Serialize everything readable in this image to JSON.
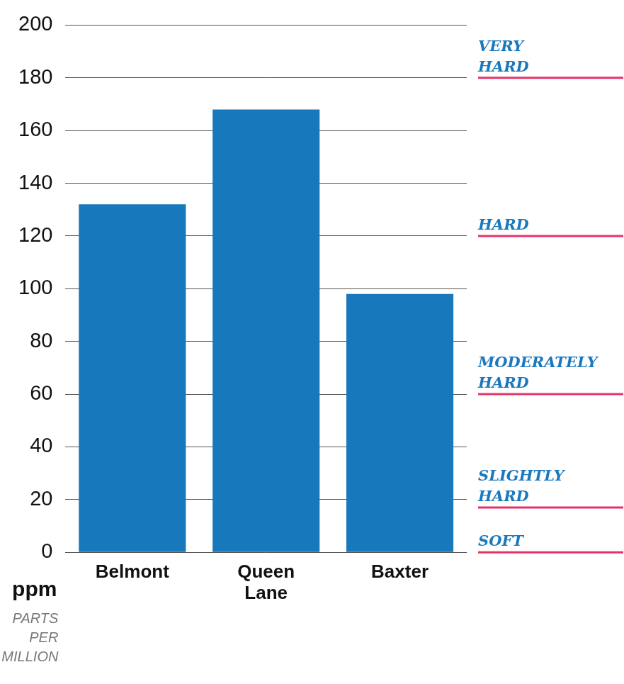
{
  "chart_data": {
    "type": "bar",
    "categories": [
      "Belmont",
      "Queen Lane",
      "Baxter"
    ],
    "values": [
      132,
      168,
      98
    ],
    "color": "#1878bc",
    "ylim": [
      0,
      200
    ],
    "yticks": [
      0,
      20,
      40,
      60,
      80,
      100,
      120,
      140,
      160,
      180,
      200
    ],
    "grid": true,
    "ylabel": "ppm",
    "ylabel_note": "PARTS PER MILLION",
    "annotations": [
      {
        "text": "VERY HARD",
        "value": 180
      },
      {
        "text": "HARD",
        "value": 120
      },
      {
        "text": "MODERATELY HARD",
        "value": 60
      },
      {
        "text": "SLIGHTLY HARD",
        "value": 17
      },
      {
        "text": "SOFT",
        "value": 0
      }
    ]
  }
}
